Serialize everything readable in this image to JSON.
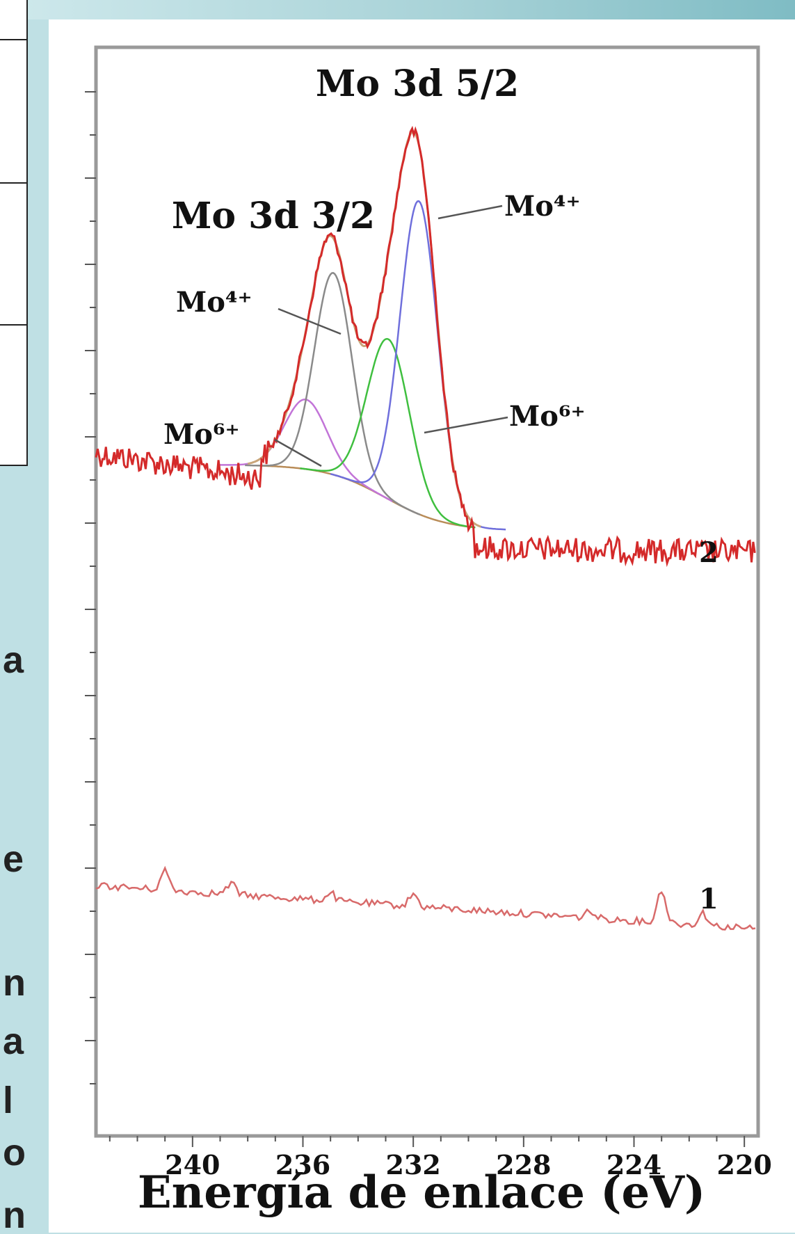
{
  "side_text": {
    "fragments": [
      "a",
      "e",
      "n",
      "a",
      "l",
      "o",
      "n"
    ]
  },
  "chart_data": {
    "type": "line",
    "title": "",
    "xlabel": "Energía de enlace (eV)",
    "ylabel": "",
    "xlim": [
      243.5,
      219.5
    ],
    "x_reversed": true,
    "xticks": [
      240,
      236,
      232,
      228,
      224,
      220
    ],
    "grid": false,
    "legend": "none",
    "curve_labels": [
      "2",
      "1"
    ],
    "peak_labels": [
      "Mo 3d 5/2",
      "Mo 3d 3/2"
    ],
    "component_labels": {
      "mo4_right": "Mo⁴⁺",
      "mo4_left": "Mo⁴⁺",
      "mo6_left": "Mo⁶⁺",
      "mo6_right": "Mo⁶⁺"
    },
    "peaks": {
      "mo4_5_2": {
        "center": 231.8,
        "fwhm": 1.6
      },
      "mo6_5_2": {
        "center": 232.9,
        "fwhm": 1.8
      },
      "mo4_3_2": {
        "center": 234.9,
        "fwhm": 1.6
      },
      "mo6_3_2": {
        "center": 235.9,
        "fwhm": 1.8
      }
    },
    "colors": {
      "spectrum": "#d42a2a",
      "sample1": "#d86a6a",
      "mo4_5_2": "#6f6fdc",
      "mo6_5_2": "#3fbf3f",
      "mo4_3_2": "#8a8a8a",
      "mo6_3_2": "#c274d8",
      "background": "#b98c58",
      "envelope": "#c9a57a"
    }
  }
}
